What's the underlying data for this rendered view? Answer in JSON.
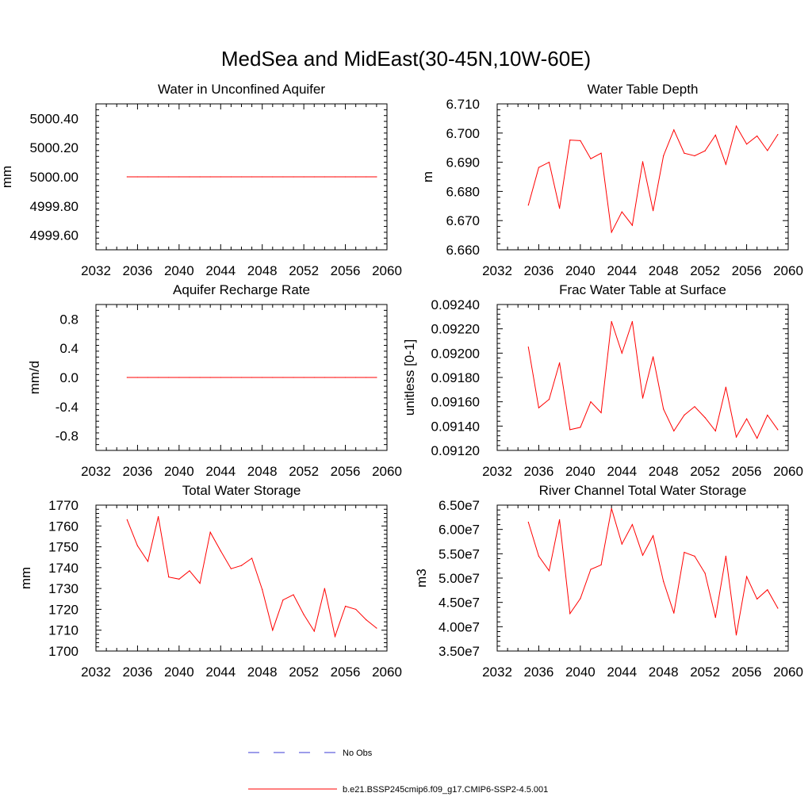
{
  "figure": {
    "title": "MedSea and MidEast(30-45N,10W-60E)"
  },
  "legend": [
    {
      "label": "No Obs",
      "style": "dashed",
      "color": "#3b3bd6"
    },
    {
      "label": "b.e21.BSSP245cmip6.f09_g17.CMIP6-SSP2-4.5.001",
      "style": "solid",
      "color": "#ff0000"
    }
  ],
  "colors": {
    "series": "#ff0000",
    "axis": "#000000",
    "obs": "#3b3bd6"
  },
  "chart_data": [
    {
      "id": "aquifer",
      "type": "line",
      "title": "Water in Unconfined Aquifer",
      "ylabel": "mm",
      "xlim": [
        2032,
        2060
      ],
      "ylim": [
        4999.5,
        5000.5
      ],
      "xticks": [
        2032,
        2036,
        2040,
        2044,
        2048,
        2052,
        2056,
        2060
      ],
      "xtick_labels": [
        "2032",
        "2036",
        "2040",
        "2044",
        "2048",
        "2052",
        "2056",
        "2060"
      ],
      "yticks": [
        4999.6,
        4999.8,
        5000.0,
        5000.2,
        5000.4
      ],
      "ytick_labels": [
        "4999.60",
        "4999.80",
        "5000.00",
        "5000.20",
        "5000.40"
      ],
      "series": [
        {
          "color": "#ff0000",
          "x": [
            2035,
            2036,
            2037,
            2038,
            2039,
            2040,
            2041,
            2042,
            2043,
            2044,
            2045,
            2046,
            2047,
            2048,
            2049,
            2050,
            2051,
            2052,
            2053,
            2054,
            2055,
            2056,
            2057,
            2058,
            2059
          ],
          "y": [
            5000.0,
            5000.0,
            5000.0,
            5000.0,
            5000.0,
            5000.0,
            5000.0,
            5000.0,
            5000.0,
            5000.0,
            5000.0,
            5000.0,
            5000.0,
            5000.0,
            5000.0,
            5000.0,
            5000.0,
            5000.0,
            5000.0,
            5000.0,
            5000.0,
            5000.0,
            5000.0,
            5000.0,
            5000.0
          ]
        }
      ]
    },
    {
      "id": "wtd",
      "type": "line",
      "title": "Water Table Depth",
      "ylabel": "m",
      "xlim": [
        2032,
        2060
      ],
      "ylim": [
        6.66,
        6.71
      ],
      "xticks": [
        2032,
        2036,
        2040,
        2044,
        2048,
        2052,
        2056,
        2060
      ],
      "xtick_labels": [
        "2032",
        "2036",
        "2040",
        "2044",
        "2048",
        "2052",
        "2056",
        "2060"
      ],
      "yticks": [
        6.66,
        6.67,
        6.68,
        6.69,
        6.7,
        6.71
      ],
      "ytick_labels": [
        "6.660",
        "6.670",
        "6.680",
        "6.690",
        "6.700",
        "6.710"
      ],
      "series": [
        {
          "color": "#ff0000",
          "x": [
            2035,
            2036,
            2037,
            2038,
            2039,
            2040,
            2041,
            2042,
            2043,
            2044,
            2045,
            2046,
            2047,
            2048,
            2049,
            2050,
            2051,
            2052,
            2053,
            2054,
            2055,
            2056,
            2057,
            2058,
            2059
          ],
          "y": [
            6.6753,
            6.6882,
            6.69,
            6.6742,
            6.6976,
            6.6974,
            6.6912,
            6.6931,
            6.666,
            6.673,
            6.6684,
            6.6902,
            6.6734,
            6.6922,
            6.7011,
            6.6931,
            6.6922,
            6.6939,
            6.6993,
            6.6893,
            6.7024,
            6.6962,
            6.699,
            6.694,
            6.6995
          ]
        }
      ]
    },
    {
      "id": "recharge",
      "type": "line",
      "title": "Aquifer Recharge Rate",
      "ylabel": "mm/d",
      "xlim": [
        2032,
        2060
      ],
      "ylim": [
        -1.0,
        1.0
      ],
      "xticks": [
        2032,
        2036,
        2040,
        2044,
        2048,
        2052,
        2056,
        2060
      ],
      "xtick_labels": [
        "2032",
        "2036",
        "2040",
        "2044",
        "2048",
        "2052",
        "2056",
        "2060"
      ],
      "yticks": [
        -0.8,
        -0.4,
        0.0,
        0.4,
        0.8
      ],
      "ytick_labels": [
        "-0.8",
        "-0.4",
        "0.0",
        "0.4",
        "0.8"
      ],
      "series": [
        {
          "color": "#ff0000",
          "x": [
            2035,
            2036,
            2037,
            2038,
            2039,
            2040,
            2041,
            2042,
            2043,
            2044,
            2045,
            2046,
            2047,
            2048,
            2049,
            2050,
            2051,
            2052,
            2053,
            2054,
            2055,
            2056,
            2057,
            2058,
            2059
          ],
          "y": [
            0,
            0,
            0,
            0,
            0,
            0,
            0,
            0,
            0,
            0,
            0,
            0,
            0,
            0,
            0,
            0,
            0,
            0,
            0,
            0,
            0,
            0,
            0,
            0,
            0
          ]
        }
      ]
    },
    {
      "id": "frac",
      "type": "line",
      "title": "Frac Water Table at Surface",
      "ylabel": "unitless [0-1]",
      "xlim": [
        2032,
        2060
      ],
      "ylim": [
        0.0912,
        0.0924
      ],
      "xticks": [
        2032,
        2036,
        2040,
        2044,
        2048,
        2052,
        2056,
        2060
      ],
      "xtick_labels": [
        "2032",
        "2036",
        "2040",
        "2044",
        "2048",
        "2052",
        "2056",
        "2060"
      ],
      "yticks": [
        0.0912,
        0.0914,
        0.0916,
        0.0918,
        0.092,
        0.0922,
        0.0924
      ],
      "ytick_labels": [
        "0.09120",
        "0.09140",
        "0.09160",
        "0.09180",
        "0.09200",
        "0.09220",
        "0.09240"
      ],
      "series": [
        {
          "color": "#ff0000",
          "x": [
            2035,
            2036,
            2037,
            2038,
            2039,
            2040,
            2041,
            2042,
            2043,
            2044,
            2045,
            2046,
            2047,
            2048,
            2049,
            2050,
            2051,
            2052,
            2053,
            2054,
            2055,
            2056,
            2057,
            2058,
            2059
          ],
          "y": [
            0.09205,
            0.09155,
            0.09162,
            0.09192,
            0.09137,
            0.09139,
            0.0916,
            0.09151,
            0.09226,
            0.092,
            0.09226,
            0.09163,
            0.09197,
            0.09154,
            0.09136,
            0.09149,
            0.09156,
            0.09147,
            0.09136,
            0.09172,
            0.09131,
            0.09146,
            0.0913,
            0.09149,
            0.09137
          ]
        }
      ]
    },
    {
      "id": "tws",
      "type": "line",
      "title": "Total Water Storage",
      "ylabel": "mm",
      "xlim": [
        2032,
        2060
      ],
      "ylim": [
        1700,
        1770
      ],
      "xticks": [
        2032,
        2036,
        2040,
        2044,
        2048,
        2052,
        2056,
        2060
      ],
      "xtick_labels": [
        "2032",
        "2036",
        "2040",
        "2044",
        "2048",
        "2052",
        "2056",
        "2060"
      ],
      "yticks": [
        1700,
        1710,
        1720,
        1730,
        1740,
        1750,
        1760,
        1770
      ],
      "ytick_labels": [
        "1700",
        "1710",
        "1720",
        "1730",
        "1740",
        "1750",
        "1760",
        "1770"
      ],
      "series": [
        {
          "color": "#ff0000",
          "x": [
            2035,
            2036,
            2037,
            2038,
            2039,
            2040,
            2041,
            2042,
            2043,
            2044,
            2045,
            2046,
            2047,
            2048,
            2049,
            2050,
            2051,
            2052,
            2053,
            2054,
            2055,
            2056,
            2057,
            2058,
            2059
          ],
          "y": [
            1763.0,
            1750.5,
            1743.0,
            1764.5,
            1735.5,
            1734.5,
            1738.5,
            1732.5,
            1757.0,
            1748.0,
            1739.5,
            1741.0,
            1744.5,
            1729.5,
            1710.0,
            1724.5,
            1727.0,
            1717.5,
            1709.5,
            1730.0,
            1707.0,
            1721.5,
            1720.0,
            1715.0,
            1711.0
          ]
        }
      ]
    },
    {
      "id": "river",
      "type": "line",
      "title": "River Channel Total Water Storage",
      "ylabel": "m3",
      "xlim": [
        2032,
        2060
      ],
      "ylim": [
        35000000,
        65000000
      ],
      "xticks": [
        2032,
        2036,
        2040,
        2044,
        2048,
        2052,
        2056,
        2060
      ],
      "xtick_labels": [
        "2032",
        "2036",
        "2040",
        "2044",
        "2048",
        "2052",
        "2056",
        "2060"
      ],
      "yticks": [
        35000000,
        40000000,
        45000000,
        50000000,
        55000000,
        60000000,
        65000000
      ],
      "ytick_labels": [
        "3.50e7",
        "4.00e7",
        "4.50e7",
        "5.00e7",
        "5.50e7",
        "6.00e7",
        "6.50e7"
      ],
      "series": [
        {
          "color": "#ff0000",
          "x": [
            2035,
            2036,
            2037,
            2038,
            2039,
            2040,
            2041,
            2042,
            2043,
            2044,
            2045,
            2046,
            2047,
            2048,
            2049,
            2050,
            2051,
            2052,
            2053,
            2054,
            2055,
            2056,
            2057,
            2058,
            2059
          ],
          "y": [
            61500000,
            54500000,
            51500000,
            62000000,
            42700000,
            45800000,
            51800000,
            52700000,
            64300000,
            57000000,
            61000000,
            54700000,
            58700000,
            49300000,
            42800000,
            55300000,
            54500000,
            51000000,
            41900000,
            54500000,
            38300000,
            50300000,
            45700000,
            47600000,
            43800000
          ]
        }
      ]
    }
  ]
}
